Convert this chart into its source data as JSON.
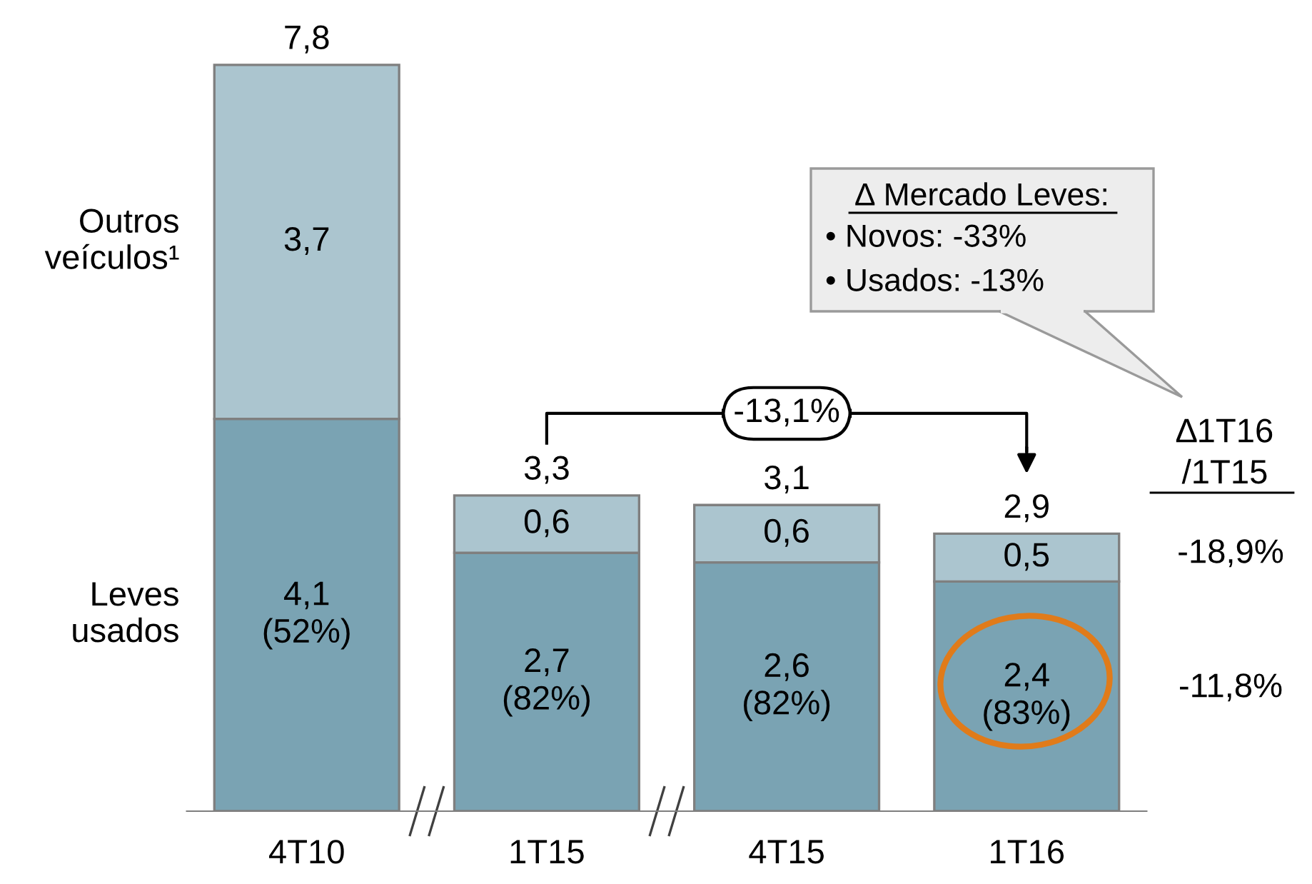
{
  "chart_data": {
    "type": "bar",
    "stacked": true,
    "grid": false,
    "data_labels": true,
    "categories": [
      "4T10",
      "1T15",
      "4T15",
      "1T16"
    ],
    "series": [
      {
        "name": "Leves usados",
        "color": "#7aa3b3",
        "values": [
          4.1,
          2.7,
          2.6,
          2.4
        ],
        "value_labels": [
          "4,1\n(52%)",
          "2,7\n(82%)",
          "2,6\n(82%)",
          "2,4\n(83%)"
        ]
      },
      {
        "name": "Outros veículos¹",
        "color": "#abc5cf",
        "values": [
          3.7,
          0.6,
          0.6,
          0.5
        ],
        "value_labels": [
          "3,7",
          "0,6",
          "0,6",
          "0,5"
        ]
      }
    ],
    "totals": [
      "7,8",
      "3,3",
      "3,1",
      "2,9"
    ],
    "annotations": [
      "∆ Mercado Leves:",
      "• Novos: -33%",
      "• Usados: -13%",
      "-13,1%",
      "∆1T16\n/1T15",
      "-18,9%",
      "-11,8%"
    ]
  }
}
